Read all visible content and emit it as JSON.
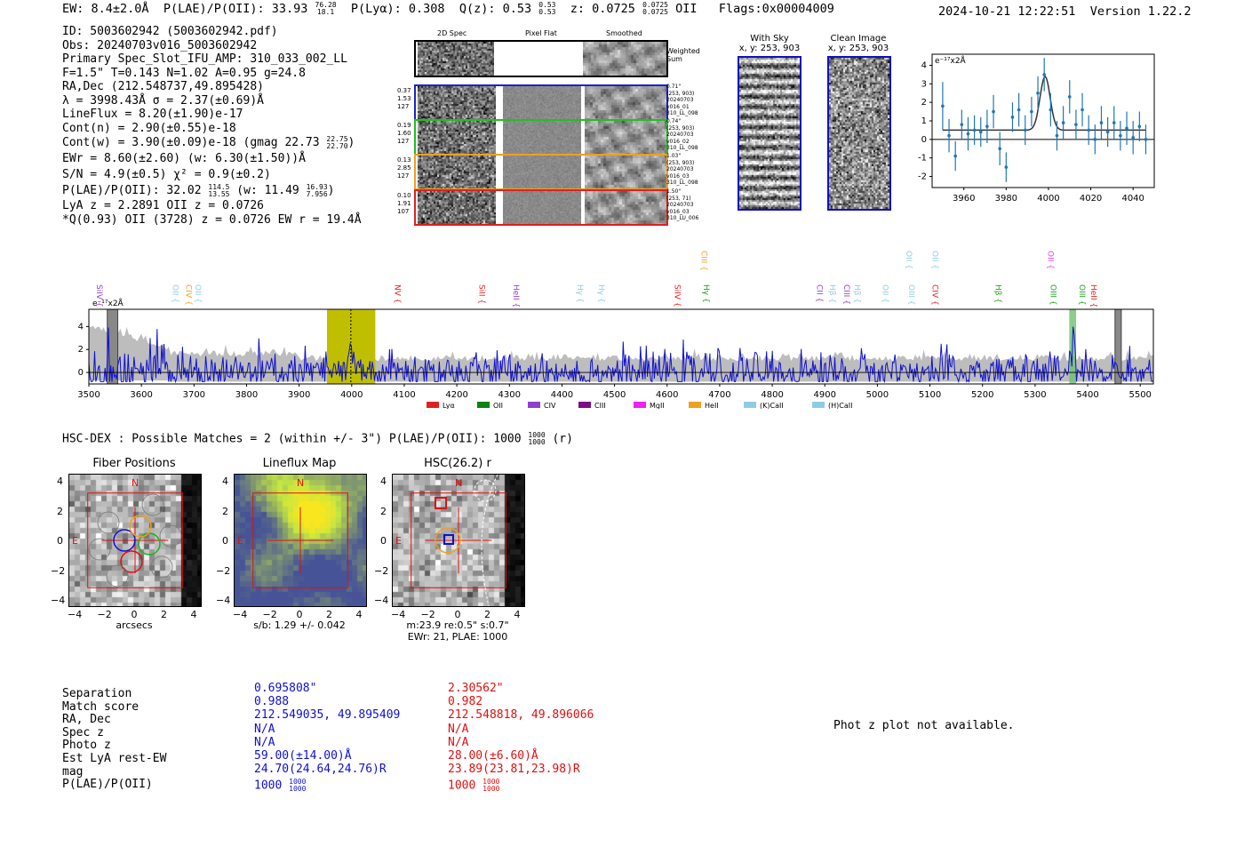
{
  "header": {
    "ew": "EW: 8.4±2.0Å",
    "plae": "P(LAE)/P(OII): 33.93",
    "plae_hi": "76.28",
    "plae_lo": "18.1",
    "plya": "P(Lyα): 0.308",
    "q": "Q(z): 0.53",
    "q_hi": "0.53",
    "q_lo": "0.53",
    "z": "z: 0.0725",
    "z_hi": "0.0725",
    "z_lo": "0.0725",
    "z_line": "OII",
    "flags": "Flags:0x00004009",
    "datetime": "2024-10-21 12:22:51",
    "version": "Version 1.22.2"
  },
  "info": {
    "lines": [
      "ID: 5003602942 (5003602942.pdf)",
      "Obs: 20240703v016_5003602942",
      "Primary Spec_Slot_IFU_AMP: 310_033_002_LL",
      "F=1.5\"  T=0.143  N=1.02  A=0.95  g=24.8",
      "RA,Dec (212.548737,49.895428)",
      "λ = 3998.43Å  σ = 2.37(±0.69)Å",
      "LineFlux = 8.20(±1.90)e-17",
      "Cont(n) = 2.90(±0.55)e-18"
    ],
    "contw": "Cont(w) = 3.90(±0.09)e-18 (gmag 22.73",
    "contw_hi": "22.75",
    "contw_lo": "22.70",
    "ewr": "EWr = 8.60(±2.60) (w: 6.30(±1.50))Å",
    "sn": "S/N = 4.9(±0.5)  χ² = 0.9(±0.2)",
    "plae2": "P(LAE)/P(OII): 32.02",
    "plae2_hi": "114.5",
    "plae2_lo": "13.55",
    "plae2_w": "(w: 11.49",
    "plae2_w_hi": "16.93",
    "plae2_w_lo": "7.956",
    "lya_z": "LyA z = 2.2891  OII z = 0.0726",
    "q_line": "*Q(0.93) OII (3728) z = 0.0726  EW r = 19.4Å"
  },
  "cutouts": {
    "col_titles": [
      "2D Spec",
      "Pixel Flat",
      "Smoothed"
    ],
    "weighted": "Weighted Sum",
    "rows": [
      {
        "left": [
          "0.37",
          "1.53",
          "127"
        ],
        "right": [
          "0.71\"",
          "(253, 903)",
          "20240703",
          "v016_01",
          "310_LL_098"
        ],
        "color": "#2020d0"
      },
      {
        "left": [
          "0.19",
          "1.60",
          "127"
        ],
        "right": [
          "0.74\"",
          "(253, 903)",
          "20240703",
          "v016_02",
          "310_LL_098"
        ],
        "color": "#20c020"
      },
      {
        "left": [
          "0.13",
          "2.85",
          "127"
        ],
        "right": [
          "1.03\"",
          "(253, 903)",
          "20240703",
          "v016_03",
          "310_LL_098"
        ],
        "color": "#f0a020"
      },
      {
        "left": [
          "0.10",
          "1.91",
          "107"
        ],
        "right": [
          "1.50\"",
          "(253, 71)",
          "20240703",
          "v016_03",
          "310_LU_006"
        ],
        "color": "#e02020"
      }
    ],
    "with_sky": [
      "With Sky",
      "x, y: 253, 903"
    ],
    "clean": [
      "Clean Image",
      "x, y: 253, 903"
    ]
  },
  "chart_data": [
    {
      "type": "line",
      "id": "zoom-spectrum",
      "unit_label": "e⁻¹⁷x2Å",
      "xlim": [
        3945,
        4050
      ],
      "ylim": [
        -2.6,
        4.6
      ],
      "xticks": [
        3960,
        3980,
        4000,
        4020,
        4040
      ],
      "yticks": [
        -2,
        -1,
        0,
        1,
        2,
        3,
        4
      ],
      "data_x": [
        3950,
        3953,
        3956,
        3959,
        3962,
        3965,
        3968,
        3971,
        3974,
        3977,
        3980,
        3983,
        3986,
        3989,
        3992,
        3995,
        3998,
        4001,
        4004,
        4007,
        4010,
        4013,
        4016,
        4019,
        4022,
        4025,
        4028,
        4031,
        4034,
        4037,
        4040,
        4043,
        4046
      ],
      "data_y": [
        1.8,
        0.2,
        -0.9,
        0.8,
        0.3,
        0.5,
        0.4,
        0.7,
        1.5,
        -0.5,
        -1.5,
        1.2,
        1.6,
        0.5,
        1.5,
        2.5,
        3.5,
        1.6,
        0.2,
        0.9,
        2.3,
        0.8,
        1.6,
        0.5,
        0.0,
        0.9,
        0.4,
        0.9,
        0.2,
        0.6,
        0.1,
        0.7,
        0.0
      ],
      "err": [
        1.3,
        0.9,
        0.8,
        0.8,
        0.9,
        0.8,
        0.8,
        0.9,
        0.9,
        0.9,
        0.8,
        0.8,
        0.9,
        0.8,
        0.8,
        0.9,
        0.9,
        0.9,
        0.8,
        0.9,
        0.9,
        0.8,
        0.9,
        0.8,
        0.8,
        0.9,
        0.8,
        0.9,
        0.8,
        0.9,
        0.9,
        0.8,
        0.8
      ],
      "fit": {
        "continuum": 0.5,
        "amplitude": 2.9,
        "center": 3998.4,
        "sigma": 2.4
      }
    },
    {
      "type": "line",
      "id": "full-spectrum",
      "unit_label": "e⁻¹⁷x2Å",
      "xlim": [
        3500,
        5525
      ],
      "ylim": [
        -1,
        5.5
      ],
      "xticks": [
        3500,
        3600,
        3700,
        3800,
        3900,
        4000,
        4100,
        4200,
        4300,
        4400,
        4500,
        4600,
        4700,
        4800,
        4900,
        5000,
        5100,
        5200,
        5300,
        5400,
        5500
      ],
      "yticks": [
        0,
        2,
        4
      ],
      "highlight_range": [
        3953,
        4045
      ],
      "line_marker": 3998.4,
      "grey_bands": [
        [
          3535,
          3555
        ],
        [
          5452,
          5464
        ]
      ],
      "green_band": [
        5365,
        5378
      ],
      "lines": [
        {
          "label": "SiIV",
          "x": 3510,
          "color": "#9040d0",
          "row": 1
        },
        {
          "label": "OII",
          "x": 3655,
          "color": "#8fcbe8",
          "row": 1
        },
        {
          "label": "CIV",
          "x": 3680,
          "color": "#f0a020",
          "row": 1
        },
        {
          "label": "OII",
          "x": 3698,
          "color": "#8fcbe8",
          "row": 1
        },
        {
          "label": "NV",
          "x": 4077,
          "color": "#e02020",
          "row": 1
        },
        {
          "label": "SiII",
          "x": 4238,
          "color": "#e02020",
          "row": 1
        },
        {
          "label": "HeII",
          "x": 4303,
          "color": "#9040d0",
          "row": 1
        },
        {
          "label": "Hγ",
          "x": 4425,
          "color": "#8fcbe8",
          "row": 1
        },
        {
          "label": "Hγ",
          "x": 4465,
          "color": "#8fcbe8",
          "row": 1
        },
        {
          "label": "SiIV",
          "x": 4610,
          "color": "#e02020",
          "row": 1
        },
        {
          "label": "CIII",
          "x": 4660,
          "color": "#f0a020",
          "row": 0
        },
        {
          "label": "Hγ",
          "x": 4665,
          "color": "#20a020",
          "row": 1
        },
        {
          "label": "CII",
          "x": 4880,
          "color": "#9040d0",
          "row": 1
        },
        {
          "label": "Hβ",
          "x": 4905,
          "color": "#8fcbe8",
          "row": 1
        },
        {
          "label": "CIII",
          "x": 4932,
          "color": "#9040d0",
          "row": 1
        },
        {
          "label": "Hβ",
          "x": 4952,
          "color": "#8fcbe8",
          "row": 1
        },
        {
          "label": "OII",
          "x": 5005,
          "color": "#8fcbe8",
          "row": 1
        },
        {
          "label": "OII",
          "x": 5050,
          "color": "#8fcbe8",
          "row": 0
        },
        {
          "label": "OIII",
          "x": 5055,
          "color": "#8fcbe8",
          "row": 1
        },
        {
          "label": "OII",
          "x": 5100,
          "color": "#8fcbe8",
          "row": 0
        },
        {
          "label": "CIV",
          "x": 5100,
          "color": "#e02020",
          "row": 1
        },
        {
          "label": "Hβ",
          "x": 5220,
          "color": "#20a020",
          "row": 1
        },
        {
          "label": "OIII",
          "x": 5325,
          "color": "#20a020",
          "row": 1
        },
        {
          "label": "OII",
          "x": 5320,
          "color": "#e040e0",
          "row": 0
        },
        {
          "label": "OIII",
          "x": 5380,
          "color": "#20a020",
          "row": 1
        },
        {
          "label": "HeII",
          "x": 5402,
          "color": "#e02020",
          "row": 1
        }
      ],
      "legend": [
        {
          "label": "Lyα",
          "color": "#e02020"
        },
        {
          "label": "OII",
          "color": "#108010"
        },
        {
          "label": "CIV",
          "color": "#9040d0"
        },
        {
          "label": "CIII",
          "color": "#7a1080"
        },
        {
          "label": "MgII",
          "color": "#f020f0"
        },
        {
          "label": "HeII",
          "color": "#f0a020"
        },
        {
          "label": "(K)CaII",
          "color": "#8fcbe8"
        },
        {
          "label": "(H)CaII",
          "color": "#8fcbe8"
        }
      ]
    }
  ],
  "match": {
    "title": "HSC-DEX : Possible Matches = 2 (within +/- 3\")  P(LAE)/P(OII): 1000",
    "title_hi": "1000",
    "title_lo": "1000",
    "title_band": "(r)"
  },
  "maps": [
    {
      "title": "Fiber Positions",
      "xlabel": "arcsecs",
      "xticks": [
        "−4",
        "−2",
        "0",
        "2",
        "4"
      ],
      "yticks": [
        "4",
        "2",
        "0",
        "−2",
        "−4"
      ],
      "n": "N",
      "e": "E"
    },
    {
      "title": "Lineflux Map",
      "xlabel": "s/b: 1.29 +/- 0.042",
      "xticks": [
        "−4",
        "−2",
        "0",
        "2",
        "4"
      ],
      "yticks": [
        "4",
        "2",
        "0",
        "−2",
        "−4"
      ],
      "n": "N",
      "e": "E"
    },
    {
      "title": "HSC(26.2) r",
      "xlabel": "m:23.9  re:0.5\"  s:0.7\"",
      "xlabel2": "EWr: 21, PLAE: 1000",
      "xticks": [
        "−4",
        "−2",
        "0",
        "2",
        "4"
      ],
      "yticks": [
        "4",
        "2",
        "0",
        "−2",
        "−4"
      ],
      "n": "N",
      "e": "E"
    }
  ],
  "comparison": {
    "labels": [
      "Separation",
      "Match score",
      "RA, Dec",
      "Spec z",
      "Photo z",
      "Est LyA rest-EW",
      "mag",
      "P(LAE)/P(OII)"
    ],
    "blue": [
      "0.695808\"",
      "0.988",
      "212.549035, 49.895409",
      "N/A",
      "N/A",
      "59.00(±14.00)Å",
      "24.70(24.64,24.76)R"
    ],
    "blue_plae": "1000",
    "blue_plae_hi": "1000",
    "blue_plae_lo": "1000",
    "red": [
      "2.30562\"",
      "0.982",
      "212.548818, 49.896066",
      "N/A",
      "N/A",
      "28.00(±6.60)Å",
      "23.89(23.81,23.98)R"
    ],
    "red_plae": "1000",
    "red_plae_hi": "1000",
    "red_plae_lo": "1000",
    "photz_msg": "Phot z plot not available."
  }
}
